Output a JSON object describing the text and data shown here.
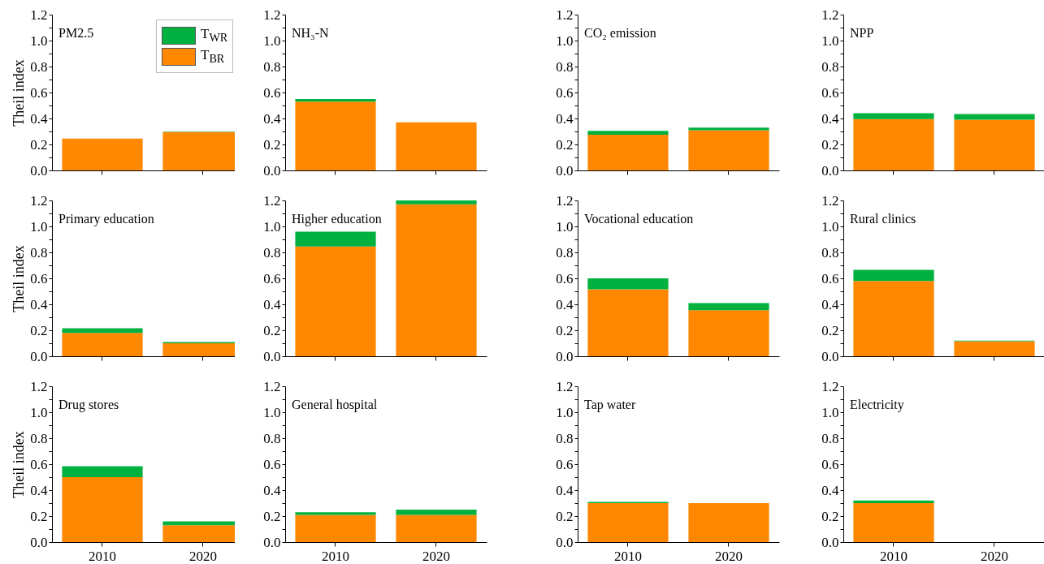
{
  "chart_data": [
    {
      "type": "bar",
      "title": "PM2.5",
      "ylabel": "Theil index",
      "stacked": true,
      "legend": "top right",
      "tick_labels": "y",
      "categories": [
        "2010",
        "2020"
      ],
      "ylim": [
        0,
        1.2
      ],
      "yticks": [
        {
          "value": 0,
          "label": "0.0"
        },
        {
          "value": 0.1,
          "label": null
        },
        {
          "value": 0.2,
          "label": "0.2"
        },
        {
          "value": 0.3,
          "label": null
        },
        {
          "value": 0.4,
          "label": "0.4"
        },
        {
          "value": 0.5,
          "label": null
        },
        {
          "value": 0.6,
          "label": "0.6"
        },
        {
          "value": 0.7,
          "label": null
        },
        {
          "value": 0.8,
          "label": "0.8"
        },
        {
          "value": 0.9,
          "label": null
        },
        {
          "value": 1,
          "label": "1.0"
        },
        {
          "value": 1.1,
          "label": null
        },
        {
          "value": 1.2,
          "label": "1.2"
        }
      ],
      "series": [
        {
          "name": "T$_{BR}$",
          "color": "#ff8800",
          "values": [
            0.245,
            0.295
          ]
        },
        {
          "name": "T$_{WR}$",
          "color": "#00b140",
          "values": [
            null,
            0.003
          ]
        }
      ]
    },
    {
      "type": "bar",
      "title": "NH₃-N",
      "stacked": true,
      "tick_labels": "y",
      "categories": [
        "2010",
        "2020"
      ],
      "ylim": [
        0,
        1.2
      ],
      "yticks": [
        {
          "value": 0,
          "label": "0.0"
        },
        {
          "value": 0.1,
          "label": null
        },
        {
          "value": 0.2,
          "label": "0.2"
        },
        {
          "value": 0.3,
          "label": null
        },
        {
          "value": 0.4,
          "label": "0.4"
        },
        {
          "value": 0.5,
          "label": null
        },
        {
          "value": 0.6,
          "label": "0.6"
        },
        {
          "value": 0.7,
          "label": null
        },
        {
          "value": 0.8,
          "label": "0.8"
        },
        {
          "value": 0.9,
          "label": null
        },
        {
          "value": 1,
          "label": "1.0"
        },
        {
          "value": 1.1,
          "label": null
        },
        {
          "value": 1.2,
          "label": "1.2"
        }
      ],
      "series": [
        {
          "color": "#ff8800",
          "values": [
            0.53,
            0.37
          ]
        },
        {
          "color": "#00b140",
          "values": [
            0.02,
            null
          ]
        }
      ]
    },
    {
      "type": "bar",
      "title": "CO₂ emission",
      "stacked": true,
      "tick_labels": "y",
      "categories": [
        "2010",
        "2020"
      ],
      "ylim": [
        0,
        1.2
      ],
      "yticks": [
        {
          "value": 0,
          "label": "0.0"
        },
        {
          "value": 0.1,
          "label": null
        },
        {
          "value": 0.2,
          "label": "0.2"
        },
        {
          "value": 0.3,
          "label": null
        },
        {
          "value": 0.4,
          "label": "0.4"
        },
        {
          "value": 0.5,
          "label": null
        },
        {
          "value": 0.6,
          "label": "0.6"
        },
        {
          "value": 0.7,
          "label": null
        },
        {
          "value": 0.8,
          "label": "0.8"
        },
        {
          "value": 0.9,
          "label": null
        },
        {
          "value": 1,
          "label": "1.0"
        },
        {
          "value": 1.1,
          "label": null
        },
        {
          "value": 1.2,
          "label": "1.2"
        }
      ],
      "series": [
        {
          "color": "#ff8800",
          "values": [
            0.275,
            0.31
          ]
        },
        {
          "color": "#00b140",
          "values": [
            0.03,
            0.02
          ]
        }
      ]
    },
    {
      "type": "bar",
      "title": "NPP",
      "stacked": true,
      "tick_labels": "y",
      "categories": [
        "2010",
        "2020"
      ],
      "ylim": [
        0,
        1.2
      ],
      "yticks": [
        {
          "value": 0,
          "label": "0.0"
        },
        {
          "value": 0.1,
          "label": null
        },
        {
          "value": 0.2,
          "label": "0.2"
        },
        {
          "value": 0.3,
          "label": null
        },
        {
          "value": 0.4,
          "label": "0.4"
        },
        {
          "value": 0.5,
          "label": null
        },
        {
          "value": 0.6,
          "label": "0.6"
        },
        {
          "value": 0.7,
          "label": null
        },
        {
          "value": 0.8,
          "label": "0.8"
        },
        {
          "value": 0.9,
          "label": null
        },
        {
          "value": 1,
          "label": "1.0"
        },
        {
          "value": 1.1,
          "label": null
        },
        {
          "value": 1.2,
          "label": "1.2"
        }
      ],
      "series": [
        {
          "color": "#ff8800",
          "values": [
            0.395,
            0.39
          ]
        },
        {
          "color": "#00b140",
          "values": [
            0.045,
            0.045
          ]
        }
      ]
    },
    {
      "type": "bar",
      "title": "Primary education",
      "ylabel": "Theil index",
      "stacked": true,
      "tick_labels": "y",
      "categories": [
        "2010",
        "2020"
      ],
      "ylim": [
        0,
        1.2
      ],
      "yticks": [
        {
          "value": 0,
          "label": "0.0"
        },
        {
          "value": 0.1,
          "label": null
        },
        {
          "value": 0.2,
          "label": "0.2"
        },
        {
          "value": 0.3,
          "label": null
        },
        {
          "value": 0.4,
          "label": "0.4"
        },
        {
          "value": 0.5,
          "label": null
        },
        {
          "value": 0.6,
          "label": "0.6"
        },
        {
          "value": 0.7,
          "label": null
        },
        {
          "value": 0.8,
          "label": "0.8"
        },
        {
          "value": 0.9,
          "label": null
        },
        {
          "value": 1,
          "label": "1.0"
        },
        {
          "value": 1.1,
          "label": null
        },
        {
          "value": 1.2,
          "label": "1.2"
        }
      ],
      "series": [
        {
          "color": "#ff8800",
          "values": [
            0.18,
            0.1
          ]
        },
        {
          "color": "#00b140",
          "values": [
            0.035,
            0.01
          ]
        }
      ]
    },
    {
      "type": "bar",
      "title": "Higher education",
      "stacked": true,
      "tick_labels": "y",
      "categories": [
        "2010",
        "2020"
      ],
      "ylim": [
        0,
        1.2
      ],
      "yticks": [
        {
          "value": 0,
          "label": "0.0"
        },
        {
          "value": 0.1,
          "label": null
        },
        {
          "value": 0.2,
          "label": "0.2"
        },
        {
          "value": 0.3,
          "label": null
        },
        {
          "value": 0.4,
          "label": "0.4"
        },
        {
          "value": 0.5,
          "label": null
        },
        {
          "value": 0.6,
          "label": "0.6"
        },
        {
          "value": 0.7,
          "label": null
        },
        {
          "value": 0.8,
          "label": "0.8"
        },
        {
          "value": 0.9,
          "label": null
        },
        {
          "value": 1,
          "label": "1.0"
        },
        {
          "value": 1.1,
          "label": null
        },
        {
          "value": 1.2,
          "label": "1.2"
        }
      ],
      "series": [
        {
          "color": "#ff8800",
          "values": [
            0.845,
            1.17
          ]
        },
        {
          "color": "#00b140",
          "values": [
            0.115,
            0.03
          ]
        }
      ]
    },
    {
      "type": "bar",
      "title": "Vocational education",
      "stacked": true,
      "tick_labels": "y",
      "categories": [
        "2010",
        "2020"
      ],
      "ylim": [
        0,
        1.2
      ],
      "yticks": [
        {
          "value": 0,
          "label": "0.0"
        },
        {
          "value": 0.1,
          "label": null
        },
        {
          "value": 0.2,
          "label": "0.2"
        },
        {
          "value": 0.3,
          "label": null
        },
        {
          "value": 0.4,
          "label": "0.4"
        },
        {
          "value": 0.5,
          "label": null
        },
        {
          "value": 0.6,
          "label": "0.6"
        },
        {
          "value": 0.7,
          "label": null
        },
        {
          "value": 0.8,
          "label": "0.8"
        },
        {
          "value": 0.9,
          "label": null
        },
        {
          "value": 1,
          "label": "1.0"
        },
        {
          "value": 1.1,
          "label": null
        },
        {
          "value": 1.2,
          "label": "1.2"
        }
      ],
      "series": [
        {
          "color": "#ff8800",
          "values": [
            0.515,
            0.355
          ]
        },
        {
          "color": "#00b140",
          "values": [
            0.085,
            0.055
          ]
        }
      ]
    },
    {
      "type": "bar",
      "title": "Rural clinics",
      "stacked": true,
      "tick_labels": "y",
      "categories": [
        "2010",
        "2020"
      ],
      "ylim": [
        0,
        1.2
      ],
      "yticks": [
        {
          "value": 0,
          "label": "0.0"
        },
        {
          "value": 0.1,
          "label": null
        },
        {
          "value": 0.2,
          "label": "0.2"
        },
        {
          "value": 0.3,
          "label": null
        },
        {
          "value": 0.4,
          "label": "0.4"
        },
        {
          "value": 0.5,
          "label": null
        },
        {
          "value": 0.6,
          "label": "0.6"
        },
        {
          "value": 0.7,
          "label": null
        },
        {
          "value": 0.8,
          "label": "0.8"
        },
        {
          "value": 0.9,
          "label": null
        },
        {
          "value": 1,
          "label": "1.0"
        },
        {
          "value": 1.1,
          "label": null
        },
        {
          "value": 1.2,
          "label": "1.2"
        }
      ],
      "series": [
        {
          "color": "#ff8800",
          "values": [
            0.58,
            0.115
          ]
        },
        {
          "color": "#00b140",
          "values": [
            0.085,
            0.005
          ]
        }
      ]
    },
    {
      "type": "bar",
      "title": "Drug stores",
      "ylabel": "Theil index",
      "stacked": true,
      "categories": [
        "2010",
        "2020"
      ],
      "ylim": [
        0,
        1.2
      ],
      "yticks": [
        {
          "value": 0,
          "label": "0.0"
        },
        {
          "value": 0.1,
          "label": null
        },
        {
          "value": 0.2,
          "label": "0.2"
        },
        {
          "value": 0.3,
          "label": null
        },
        {
          "value": 0.4,
          "label": "0.4"
        },
        {
          "value": 0.5,
          "label": null
        },
        {
          "value": 0.6,
          "label": "0.6"
        },
        {
          "value": 0.7,
          "label": null
        },
        {
          "value": 0.8,
          "label": "0.8"
        },
        {
          "value": 0.9,
          "label": null
        },
        {
          "value": 1,
          "label": "1.0"
        },
        {
          "value": 1.1,
          "label": null
        },
        {
          "value": 1.2,
          "label": "1.2"
        }
      ],
      "series": [
        {
          "color": "#ff8800",
          "values": [
            0.5,
            0.13
          ]
        },
        {
          "color": "#00b140",
          "values": [
            0.085,
            0.03
          ]
        }
      ]
    },
    {
      "type": "bar",
      "title": "General hospital",
      "stacked": true,
      "categories": [
        "2010",
        "2020"
      ],
      "ylim": [
        0,
        1.2
      ],
      "yticks": [
        {
          "value": 0,
          "label": "0.0"
        },
        {
          "value": 0.1,
          "label": null
        },
        {
          "value": 0.2,
          "label": "0.2"
        },
        {
          "value": 0.3,
          "label": null
        },
        {
          "value": 0.4,
          "label": "0.4"
        },
        {
          "value": 0.5,
          "label": null
        },
        {
          "value": 0.6,
          "label": "0.6"
        },
        {
          "value": 0.7,
          "label": null
        },
        {
          "value": 0.8,
          "label": "0.8"
        },
        {
          "value": 0.9,
          "label": null
        },
        {
          "value": 1,
          "label": "1.0"
        },
        {
          "value": 1.1,
          "label": null
        },
        {
          "value": 1.2,
          "label": "1.2"
        }
      ],
      "series": [
        {
          "color": "#ff8800",
          "values": [
            0.21,
            0.21
          ]
        },
        {
          "color": "#00b140",
          "values": [
            0.02,
            0.04
          ]
        }
      ]
    },
    {
      "type": "bar",
      "title": "Tap water",
      "stacked": true,
      "categories": [
        "2010",
        "2020"
      ],
      "ylim": [
        0,
        1.2
      ],
      "yticks": [
        {
          "value": 0,
          "label": "0.0"
        },
        {
          "value": 0.1,
          "label": null
        },
        {
          "value": 0.2,
          "label": "0.2"
        },
        {
          "value": 0.3,
          "label": null
        },
        {
          "value": 0.4,
          "label": "0.4"
        },
        {
          "value": 0.5,
          "label": null
        },
        {
          "value": 0.6,
          "label": "0.6"
        },
        {
          "value": 0.7,
          "label": null
        },
        {
          "value": 0.8,
          "label": "0.8"
        },
        {
          "value": 0.9,
          "label": null
        },
        {
          "value": 1,
          "label": "1.0"
        },
        {
          "value": 1.1,
          "label": null
        },
        {
          "value": 1.2,
          "label": "1.2"
        }
      ],
      "series": [
        {
          "color": "#ff8800",
          "values": [
            0.3,
            0.3
          ]
        },
        {
          "color": "#00b140",
          "values": [
            0.01,
            null
          ]
        }
      ]
    },
    {
      "type": "bar",
      "title": "Electricity",
      "stacked": true,
      "categories": [
        "2010",
        "2020"
      ],
      "ylim": [
        0,
        1.2
      ],
      "yticks": [
        {
          "value": 0,
          "label": "0.0"
        },
        {
          "value": 0.1,
          "label": null
        },
        {
          "value": 0.2,
          "label": "0.2"
        },
        {
          "value": 0.3,
          "label": null
        },
        {
          "value": 0.4,
          "label": "0.4"
        },
        {
          "value": 0.5,
          "label": null
        },
        {
          "value": 0.6,
          "label": "0.6"
        },
        {
          "value": 0.7,
          "label": null
        },
        {
          "value": 0.8,
          "label": "0.8"
        },
        {
          "value": 0.9,
          "label": null
        },
        {
          "value": 1,
          "label": "1.0"
        },
        {
          "value": 1.1,
          "label": null
        },
        {
          "value": 1.2,
          "label": "1.2"
        }
      ],
      "series": [
        {
          "color": "#ff8800",
          "values": [
            0.3,
            null
          ]
        },
        {
          "color": "#00b140",
          "values": [
            0.02,
            null
          ]
        }
      ]
    }
  ]
}
